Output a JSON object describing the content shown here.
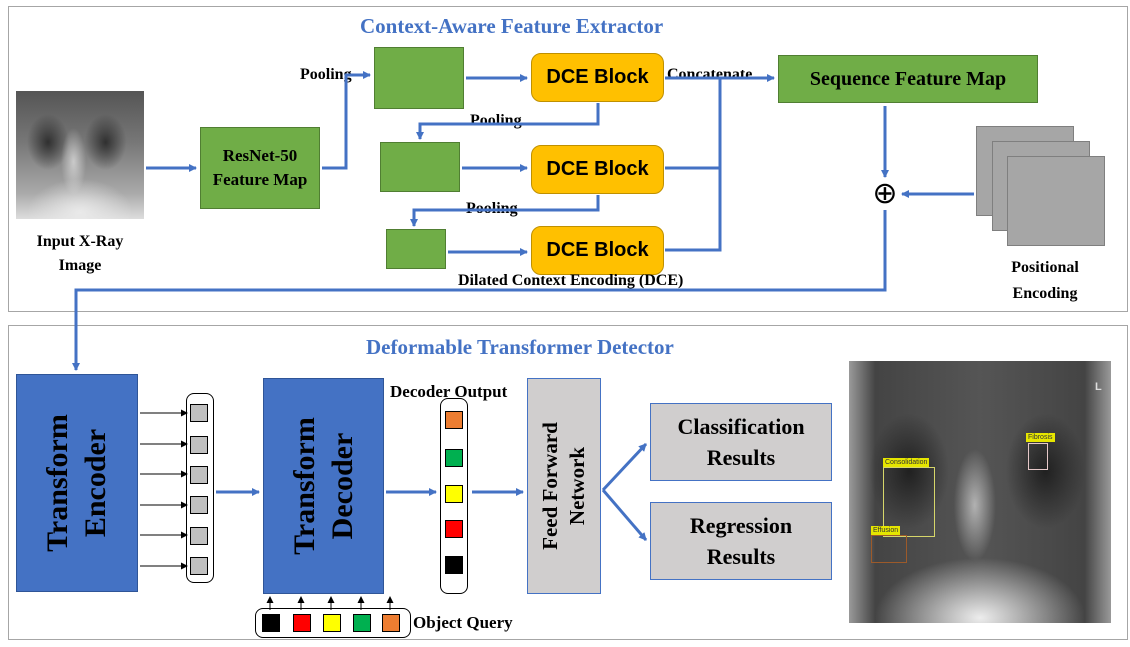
{
  "top_section": {
    "title": "Context-Aware Feature Extractor",
    "input_label": "Input X-Ray Image",
    "resnet_label": "ResNet-50 Feature Map",
    "pooling_labels": [
      "Pooling",
      "Pooling",
      "Pooling"
    ],
    "dce_blocks": [
      "DCE Block",
      "DCE Block",
      "DCE Block"
    ],
    "concatenate_label": "Concatenate",
    "sequence_label": "Sequence Feature Map",
    "dce_caption": "Dilated Context Encoding (DCE)",
    "positional_label": "Positional Encoding",
    "add_symbol": "⊕"
  },
  "bottom_section": {
    "title": "Deformable Transformer Detector",
    "encoder_label": "Transform Encoder",
    "decoder_label": "Transform Decoder",
    "decoder_output_label": "Decoder Output",
    "ffn_label": "Feed Forward Network",
    "classification_label": "Classification Results",
    "regression_label": "Regression Results",
    "object_query_label": "Object Query",
    "bbox_labels": [
      "Fibrosis",
      "Consolidation",
      "Effusion"
    ]
  },
  "colors": {
    "accent_blue": "#4472c4",
    "green_block": "#70ad47",
    "dce_yellow": "#ffc000",
    "result_grey": "#d0cece",
    "decoder_output_tokens": [
      "#ed7d31",
      "#00b050",
      "#ffff00",
      "#ff0000",
      "#000000"
    ],
    "object_query_tokens": [
      "#000000",
      "#ff0000",
      "#ffff00",
      "#00b050",
      "#ed7d31"
    ],
    "encoder_token": "#c0c0c0"
  }
}
